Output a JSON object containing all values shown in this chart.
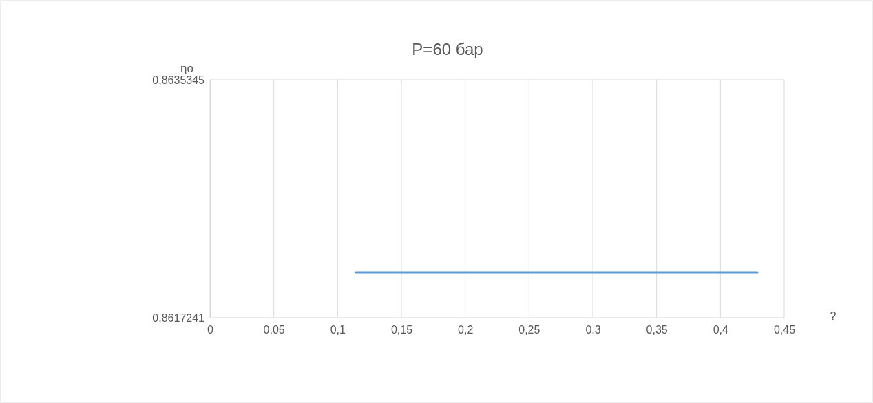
{
  "chart_data": {
    "type": "line",
    "title": "P=60 бар",
    "xlabel": "?",
    "ylabel": "ηо",
    "x": [
      0.114,
      0.429
    ],
    "series": [
      {
        "color": "#5b9bd5",
        "values": [
          0.86207,
          0.86207
        ]
      }
    ],
    "xlim": [
      0,
      0.45
    ],
    "xticks": [
      {
        "value": 0,
        "label": "0"
      },
      {
        "value": 0.05,
        "label": "0,05"
      },
      {
        "value": 0.1,
        "label": "0,1"
      },
      {
        "value": 0.15,
        "label": "0,15"
      },
      {
        "value": 0.2,
        "label": "0,2"
      },
      {
        "value": 0.25,
        "label": "0,25"
      },
      {
        "value": 0.3,
        "label": "0,3"
      },
      {
        "value": 0.35,
        "label": "0,35"
      },
      {
        "value": 0.4,
        "label": "0,4"
      },
      {
        "value": 0.45,
        "label": "0,45"
      }
    ],
    "ylim": [
      0.8617241,
      0.8635345
    ],
    "yticks": [
      {
        "value": 0.8617241,
        "label": "0,8617241"
      },
      {
        "value": 0.8635345,
        "label": "0,8635345"
      }
    ],
    "grid": true,
    "marker": "none",
    "line_style": "solid"
  }
}
